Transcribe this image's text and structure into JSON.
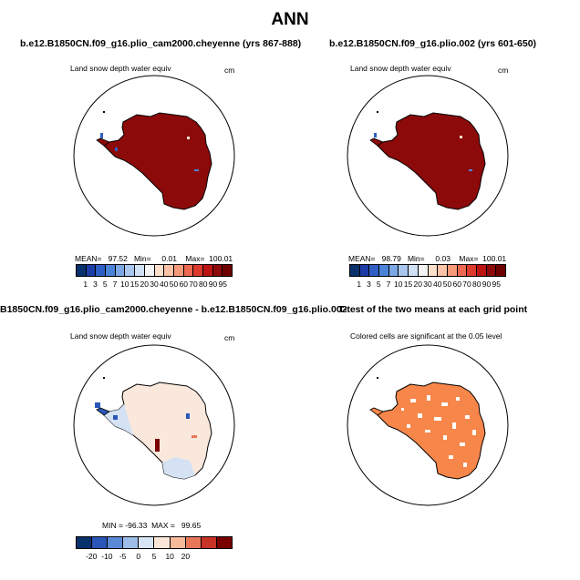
{
  "title": "ANN",
  "panels": [
    {
      "title": "b.e12.B1850CN.f09_g16.plio_cam2000.cheyenne (yrs 867-888)",
      "variable": "Land snow depth water equiv",
      "units": "cm",
      "stats": "MEAN=   97.52   Min=     0.01    Max=  100.01",
      "colorbar": {
        "labels": [
          "1",
          "3",
          "5",
          "7",
          "10",
          "15",
          "20",
          "30",
          "40",
          "50",
          "60",
          "70",
          "80",
          "90",
          "95"
        ],
        "colors": [
          "#08306b",
          "#1c3ca6",
          "#2f5fc4",
          "#4a84d8",
          "#7ba8e4",
          "#a8c6ee",
          "#d0e0f5",
          "#f4f4f4",
          "#fde0cc",
          "#fcc3a6",
          "#f79a7a",
          "#ee6a50",
          "#dc3b2c",
          "#bb1512",
          "#8c0a0a",
          "#6e0000"
        ]
      }
    },
    {
      "title": "b.e12.B1850CN.f09_g16.plio.002 (yrs 601-650)",
      "variable": "Land snow depth water equiv",
      "units": "cm",
      "stats": "MEAN=   98.79   Min=     0.03    Max=  100.01",
      "colorbar": {
        "labels": [
          "1",
          "3",
          "5",
          "7",
          "10",
          "15",
          "20",
          "30",
          "40",
          "50",
          "60",
          "70",
          "80",
          "90",
          "95"
        ],
        "colors": [
          "#08306b",
          "#1c3ca6",
          "#2f5fc4",
          "#4a84d8",
          "#7ba8e4",
          "#a8c6ee",
          "#d0e0f5",
          "#f4f4f4",
          "#fde0cc",
          "#fcc3a6",
          "#f79a7a",
          "#ee6a50",
          "#dc3b2c",
          "#bb1512",
          "#8c0a0a",
          "#6e0000"
        ]
      }
    },
    {
      "title": "B1850CN.f09_g16.plio_cam2000.cheyenne - b.e12.B1850CN.f09_g16.plio.002",
      "variable": "Land snow depth water equiv",
      "units": "cm",
      "stats": "MIN = -96.33  MAX =   99.65",
      "colorbar": {
        "labels": [
          "-20",
          "-10",
          "-5",
          "0",
          "5",
          "10",
          "20"
        ],
        "colors": [
          "#08306b",
          "#2a56b8",
          "#5a8ad6",
          "#9dbde8",
          "#d6e4f5",
          "#fbe5d6",
          "#f6b99a",
          "#e8775a",
          "#c93226",
          "#7a0000"
        ]
      }
    },
    {
      "title": "T-test of the two means at each grid point",
      "variable": "Colored cells are significant at the 0.05 level"
    }
  ],
  "colors": {
    "mean_fill": "#8c0a0a",
    "diff_fill": "#fbe8dc",
    "diff_cool": "#d4e2f4",
    "ttest_fill": "#f7864a"
  }
}
